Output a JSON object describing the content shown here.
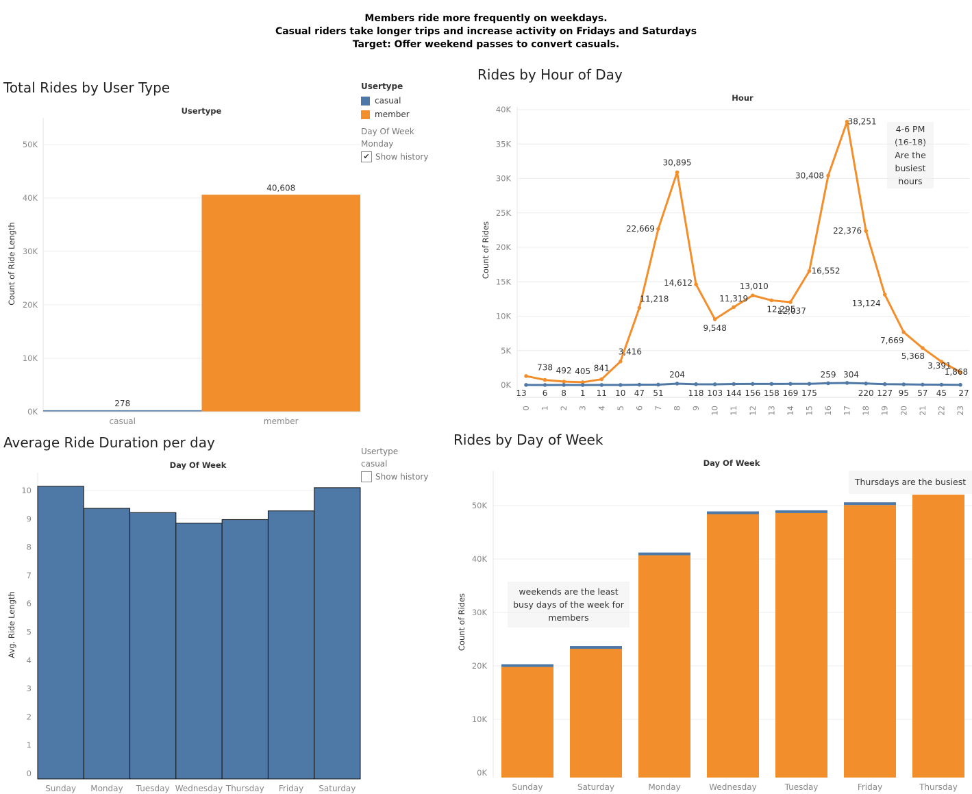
{
  "header": {
    "line1": "Members ride more frequently on weekdays.",
    "line2": "Casual riders take longer trips and increase activity on Fridays and Saturdays",
    "line3": "Target: Offer weekend passes to convert casuals."
  },
  "colors": {
    "casual": "#4e79a7",
    "member": "#f28e2b"
  },
  "legend1": {
    "title": "Usertype",
    "items": [
      "casual",
      "member"
    ],
    "filter_label": "Day Of Week",
    "filter_value": "Monday",
    "show_history": "Show history"
  },
  "legend2": {
    "title": "Usertype",
    "value": "casual",
    "show_history": "Show history"
  },
  "annotations": {
    "hour": [
      "4-6 PM",
      "(16-18)",
      "Are the",
      "busiest",
      "hours"
    ],
    "thursday": "Thursdays are the busiest",
    "weekend": [
      "weekends are the least",
      "busy days of the week for",
      "members"
    ]
  },
  "chart_data": [
    {
      "type": "bar",
      "title": "Total Rides by User Type",
      "header_label": "Usertype",
      "categories": [
        "casual",
        "member"
      ],
      "values": [
        278,
        40608
      ],
      "data_labels": [
        "278",
        "40,608"
      ],
      "ylabel": "Count of Ride Length",
      "yticks": [
        "0K",
        "10K",
        "20K",
        "30K",
        "40K",
        "50K"
      ],
      "ylim": [
        0,
        55000
      ]
    },
    {
      "type": "line",
      "title": "Rides by Hour of Day",
      "header_label": "Hour",
      "x": [
        0,
        1,
        2,
        3,
        4,
        5,
        6,
        7,
        8,
        9,
        10,
        11,
        12,
        13,
        14,
        15,
        16,
        17,
        18,
        19,
        20,
        21,
        22,
        23
      ],
      "ylabel": "Count of Rides",
      "yticks": [
        "0K",
        "5K",
        "10K",
        "15K",
        "20K",
        "25K",
        "30K",
        "35K",
        "40K"
      ],
      "ylim": [
        0,
        40000
      ],
      "series": [
        {
          "name": "member",
          "values": [
            1300,
            738,
            492,
            405,
            841,
            3416,
            11218,
            22669,
            30895,
            14612,
            9548,
            11319,
            13010,
            12295,
            12037,
            16552,
            30408,
            38251,
            22376,
            13124,
            7669,
            5368,
            3391,
            1868
          ],
          "labels": [
            "",
            "738",
            "492",
            "405",
            "841",
            "3,416",
            "11,218",
            "22,669",
            "30,895",
            "14,612",
            "9,548",
            "11,319",
            "13,010",
            "12,295",
            "12,037",
            "16,552",
            "30,408",
            "38,251",
            "22,376",
            "13,124",
            "7,669",
            "5,368",
            "3,391",
            "1,868"
          ]
        },
        {
          "name": "casual",
          "values": [
            13,
            6,
            8,
            1,
            11,
            10,
            47,
            51,
            204,
            118,
            103,
            144,
            156,
            158,
            169,
            175,
            259,
            304,
            220,
            127,
            95,
            57,
            45,
            27
          ],
          "labels": [
            "13",
            "6",
            "8",
            "1",
            "11",
            "10",
            "47",
            "51",
            "204",
            "118",
            "103",
            "144",
            "156",
            "158",
            "169",
            "175",
            "259",
            "304",
            "220",
            "127",
            "95",
            "57",
            "45",
            "27"
          ]
        }
      ]
    },
    {
      "type": "bar",
      "title": "Average Ride Duration per day",
      "header_label": "Day Of Week",
      "categories": [
        "Sunday",
        "Monday",
        "Tuesday",
        "Wednesday",
        "Thursday",
        "Friday",
        "Saturday"
      ],
      "values": [
        10.15,
        9.37,
        9.22,
        8.85,
        8.97,
        9.28,
        10.1
      ],
      "ylabel": "Avg. Ride Length",
      "yticks": [
        "0",
        "1",
        "2",
        "3",
        "4",
        "5",
        "6",
        "7",
        "8",
        "9",
        "10"
      ],
      "ylim": [
        0,
        10.8
      ]
    },
    {
      "type": "bar",
      "title": "Rides by Day of Week",
      "header_label": "Day Of Week",
      "categories": [
        "Sunday",
        "Saturday",
        "Monday",
        "Wednesday",
        "Tuesday",
        "Friday",
        "Thursday"
      ],
      "ylabel": "Count of Rides",
      "yticks": [
        "0K",
        "10K",
        "20K",
        "30K",
        "40K",
        "50K"
      ],
      "ylim": [
        0,
        53000
      ],
      "series": [
        {
          "name": "member",
          "values": [
            19800,
            23200,
            40700,
            48400,
            48600,
            50100,
            53000
          ]
        },
        {
          "name": "casual",
          "values": [
            250,
            450,
            320,
            300,
            350,
            400,
            300
          ]
        }
      ]
    }
  ]
}
